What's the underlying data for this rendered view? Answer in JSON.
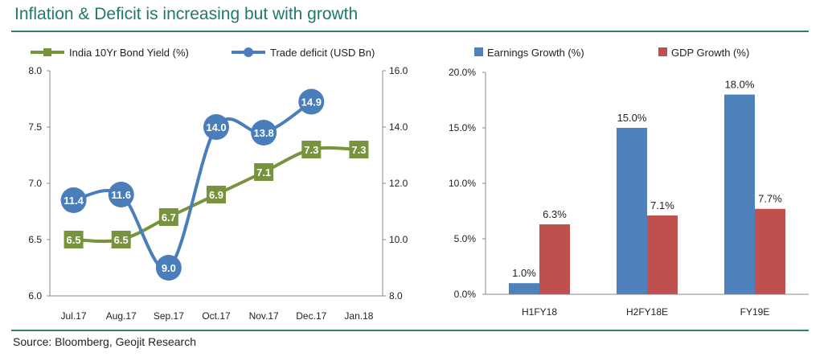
{
  "header": {
    "title": "Inflation & Deficit is increasing but with  growth"
  },
  "footer": {
    "source": "Source: Bloomberg,   Geojit Research"
  },
  "chart_data": [
    {
      "type": "line",
      "categories": [
        "Jul.17",
        "Aug.17",
        "Sep.17",
        "Oct.17",
        "Nov.17",
        "Dec.17",
        "Jan.18"
      ],
      "series": [
        {
          "name": "India 10Yr Bond Yield (%)",
          "axis": "left",
          "color": "#77933c",
          "values": [
            6.5,
            6.5,
            6.7,
            6.9,
            7.1,
            7.3,
            7.3
          ],
          "labels": [
            "6.5",
            "6.5",
            "6.7",
            "6.9",
            "7.1",
            "7.3",
            "7.3"
          ]
        },
        {
          "name": "Trade deficit (USD Bn)",
          "axis": "right",
          "color": "#4a7ebb",
          "values": [
            11.4,
            11.6,
            9.0,
            14.0,
            13.8,
            14.9,
            null
          ],
          "labels": [
            "11.4",
            "11.6",
            "9.0",
            "14.0",
            "13.8",
            "14.9",
            ""
          ]
        }
      ],
      "ylim_left": [
        6.0,
        8.0
      ],
      "yticks_left": [
        "6.0",
        "6.5",
        "7.0",
        "7.5",
        "8.0"
      ],
      "ylim_right": [
        8.0,
        16.0
      ],
      "yticks_right": [
        "8.0",
        "10.0",
        "12.0",
        "14.0",
        "16.0"
      ],
      "legend": "top",
      "grid": false
    },
    {
      "type": "bar",
      "categories": [
        "H1FY18",
        "H2FY18E",
        "FY19E"
      ],
      "series": [
        {
          "name": "Earnings Growth (%)",
          "color": "#4f81bd",
          "values": [
            1.0,
            15.0,
            18.0
          ],
          "labels": [
            "1.0%",
            "15.0%",
            "18.0%"
          ]
        },
        {
          "name": "GDP Growth (%)",
          "color": "#c0504d",
          "values": [
            6.3,
            7.1,
            7.7
          ],
          "labels": [
            "6.3%",
            "7.1%",
            "7.7%"
          ]
        }
      ],
      "ylim": [
        0,
        20
      ],
      "yticks": [
        "0.0%",
        "5.0%",
        "10.0%",
        "15.0%",
        "20.0%"
      ],
      "legend": "top",
      "grid": false
    }
  ]
}
